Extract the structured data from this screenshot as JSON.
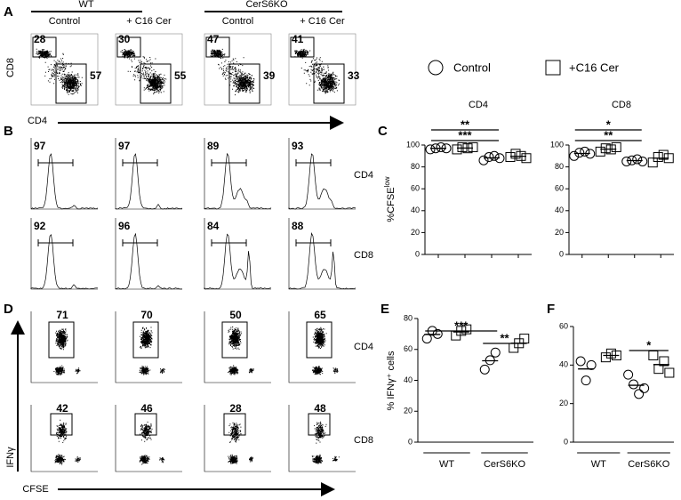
{
  "panel_a": {
    "label": "A",
    "groups": [
      "WT",
      "CerS6KO"
    ],
    "conditions": [
      "Control",
      "+ C16 Cer",
      "Control",
      "+ C16 Cer"
    ],
    "y_label": "CD8",
    "x_label": "CD4",
    "gates": [
      [
        28,
        57
      ],
      [
        30,
        55
      ],
      [
        47,
        39
      ],
      [
        41,
        33
      ]
    ]
  },
  "legend": {
    "items": [
      "Control",
      "+C16 Cer"
    ]
  },
  "panel_b": {
    "label": "B",
    "rows": [
      "CD4",
      "CD8"
    ],
    "gates": [
      [
        97,
        97,
        89,
        93
      ],
      [
        92,
        96,
        84,
        88
      ]
    ]
  },
  "panel_c": {
    "label": "C",
    "y_label": "%CFSE",
    "y_label_sup": "low",
    "charts": [
      {
        "title": "CD4",
        "ylim": [
          0,
          100
        ],
        "yticks": [
          0,
          20,
          40,
          60,
          80,
          100
        ],
        "groups": [
          [
            96,
            97,
            98,
            97
          ],
          [
            96,
            98,
            97,
            98
          ],
          [
            86,
            89,
            90,
            88
          ],
          [
            89,
            92,
            90,
            88
          ]
        ],
        "significance": [
          "**",
          "***"
        ]
      },
      {
        "title": "CD8",
        "ylim": [
          0,
          100
        ],
        "yticks": [
          0,
          20,
          40,
          60,
          80,
          100
        ],
        "groups": [
          [
            90,
            93,
            94,
            92
          ],
          [
            94,
            97,
            96,
            98
          ],
          [
            85,
            86,
            87,
            85
          ],
          [
            84,
            89,
            91,
            88
          ]
        ],
        "significance": [
          "*",
          "**"
        ]
      }
    ]
  },
  "panel_d": {
    "label": "D",
    "y_label": "IFNγ",
    "x_label": "CFSE",
    "rows": [
      "CD4",
      "CD8"
    ],
    "gates": [
      [
        71,
        70,
        50,
        65
      ],
      [
        42,
        46,
        28,
        48
      ]
    ]
  },
  "panel_e": {
    "label": "E",
    "y_label": "% IFNγ⁺ cells",
    "ylim": [
      0,
      80
    ],
    "yticks": [
      0,
      20,
      40,
      60,
      80
    ],
    "categories": [
      "WT",
      "CerS6KO"
    ],
    "groups": [
      [
        67,
        72,
        70
      ],
      [
        69,
        72,
        73
      ],
      [
        47,
        53,
        58
      ],
      [
        61,
        64,
        67
      ]
    ],
    "significance": [
      "***",
      "**"
    ]
  },
  "panel_f": {
    "label": "F",
    "ylim": [
      0,
      60
    ],
    "yticks": [
      0,
      20,
      40,
      60
    ],
    "categories": [
      "WT",
      "CerS6KO"
    ],
    "groups": [
      [
        42,
        32,
        40
      ],
      [
        44,
        46,
        45
      ],
      [
        35,
        30,
        25,
        28
      ],
      [
        45,
        38,
        42,
        36
      ]
    ],
    "significance": [
      "*"
    ]
  }
}
